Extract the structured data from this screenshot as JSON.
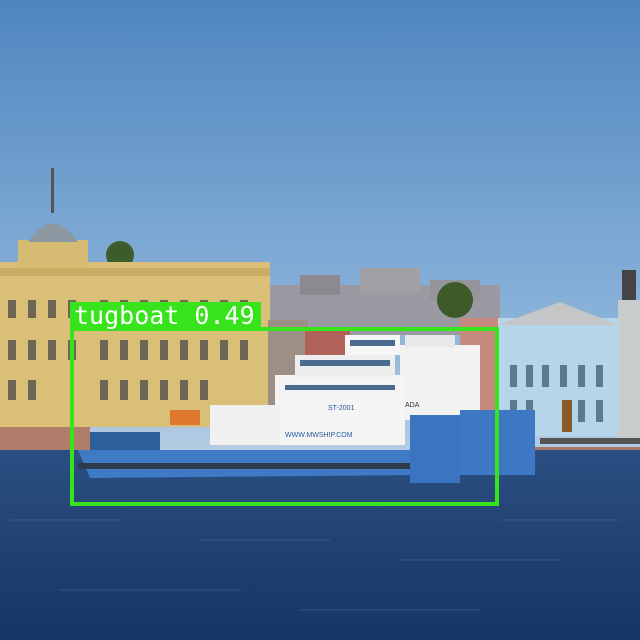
{
  "image": {
    "subject": "Photo of a river with moored vessels in front of city buildings",
    "colors": {
      "sky_top": "#5b8ec2",
      "sky_bottom": "#a9c4df",
      "water": "#1f3f73",
      "facade_yellow": "#dcc27a",
      "facade_blue": "#b8d6e8",
      "hull_blue": "#3f7ac4",
      "box_green": "#37e31a"
    },
    "hull_text_1": "ST-2001",
    "hull_text_2": "WWW.MWSHIP.COM",
    "hull_text_3": "ADA"
  },
  "detection": {
    "label": "tugboat 0.49",
    "class": "tugboat",
    "confidence": 0.49
  }
}
